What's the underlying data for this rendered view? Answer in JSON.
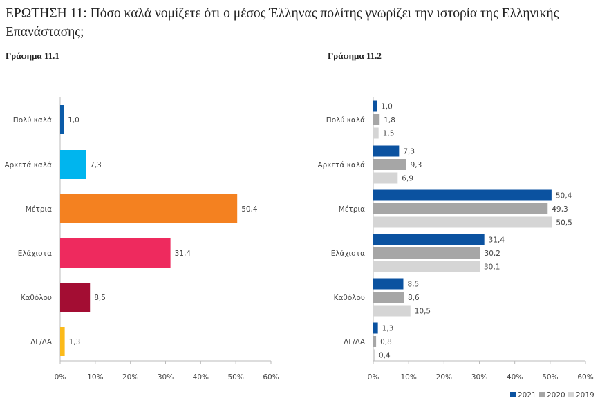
{
  "question_title": "ΕΡΩΤΗΣΗ 11: Πόσο καλά νομίζετε ότι ο μέσος Έλληνας πολίτης γνωρίζει την ιστορία της Ελληνικής Επανάστασης;",
  "chart_data": [
    {
      "type": "bar",
      "orientation": "horizontal",
      "title": "Γράφημα 11.1",
      "categories": [
        "Πολύ καλά",
        "Αρκετά καλά",
        "Μέτρια",
        "Ελάχιστα",
        "Καθόλου",
        "ΔΓ/ΔΑ"
      ],
      "values": [
        1.0,
        7.3,
        50.4,
        31.4,
        8.5,
        1.3
      ],
      "value_labels": [
        "1,0",
        "7,3",
        "50,4",
        "31,4",
        "8,5",
        "1,3"
      ],
      "colors": [
        "#0b5ba8",
        "#00b5ee",
        "#f48120",
        "#ee2a5e",
        "#a30d33",
        "#fbba1a"
      ],
      "xlim": [
        0,
        60
      ],
      "xticks": [
        "0%",
        "10%",
        "20%",
        "30%",
        "40%",
        "50%",
        "60%"
      ],
      "grid": false
    },
    {
      "type": "bar",
      "orientation": "horizontal",
      "title": "Γράφημα 11.2",
      "categories": [
        "Πολύ καλά",
        "Αρκετά καλά",
        "Μέτρια",
        "Ελάχιστα",
        "Καθόλου",
        "ΔΓ/ΔΑ"
      ],
      "series": [
        {
          "name": "2021",
          "color": "#0b52a0",
          "values": [
            1.0,
            7.3,
            50.4,
            31.4,
            8.5,
            1.3
          ],
          "value_labels": [
            "1,0",
            "7,3",
            "50,4",
            "31,4",
            "8,5",
            "1,3"
          ]
        },
        {
          "name": "2020",
          "color": "#a6a6a6",
          "values": [
            1.8,
            9.3,
            49.3,
            30.2,
            8.6,
            0.8
          ],
          "value_labels": [
            "1,8",
            "9,3",
            "49,3",
            "30,2",
            "8,6",
            "0,8"
          ]
        },
        {
          "name": "2019",
          "color": "#d5d5d5",
          "values": [
            1.5,
            6.9,
            50.5,
            30.1,
            10.5,
            0.4
          ],
          "value_labels": [
            "1,5",
            "6,9",
            "50,5",
            "30,1",
            "10,5",
            "0,4"
          ]
        }
      ],
      "xlim": [
        0,
        60
      ],
      "xticks": [
        "0%",
        "10%",
        "20%",
        "30%",
        "40%",
        "50%",
        "60%"
      ],
      "legend": "bottom-right",
      "grid": false
    }
  ]
}
